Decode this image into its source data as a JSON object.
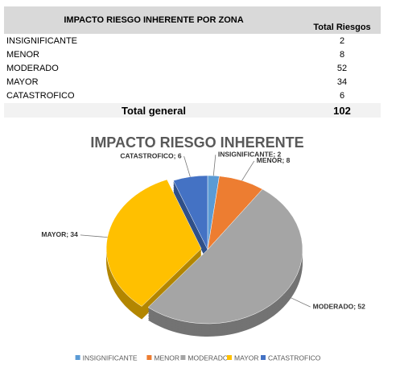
{
  "table": {
    "header": [
      "IMPACTO RIESGO INHERENTE POR ZONA",
      "Total Riesgos"
    ],
    "rows": [
      [
        "INSIGNIFICANTE",
        "2"
      ],
      [
        "MENOR",
        "8"
      ],
      [
        "MODERADO",
        "52"
      ],
      [
        "MAYOR",
        "34"
      ],
      [
        "CATASTROFICO",
        "6"
      ]
    ],
    "total": [
      "Total general",
      "102"
    ]
  },
  "chart_data": {
    "type": "pie",
    "title": "IMPACTO RIESGO INHERENTE",
    "categories": [
      "INSIGNIFICANTE",
      "MENOR",
      "MODERADO",
      "MAYOR",
      "CATASTROFICO"
    ],
    "values": [
      2,
      8,
      52,
      34,
      6
    ],
    "value_labels": [
      "INSIGNIFICANTE; 2",
      "MENOR; 8",
      "MODERADO; 52",
      "MAYOR; 34",
      "CATASTROFICO; 6"
    ],
    "colors": [
      "#5b9bd5",
      "#ed7d31",
      "#a5a5a5",
      "#ffc000",
      "#4472c4"
    ],
    "legend": "bottom"
  }
}
